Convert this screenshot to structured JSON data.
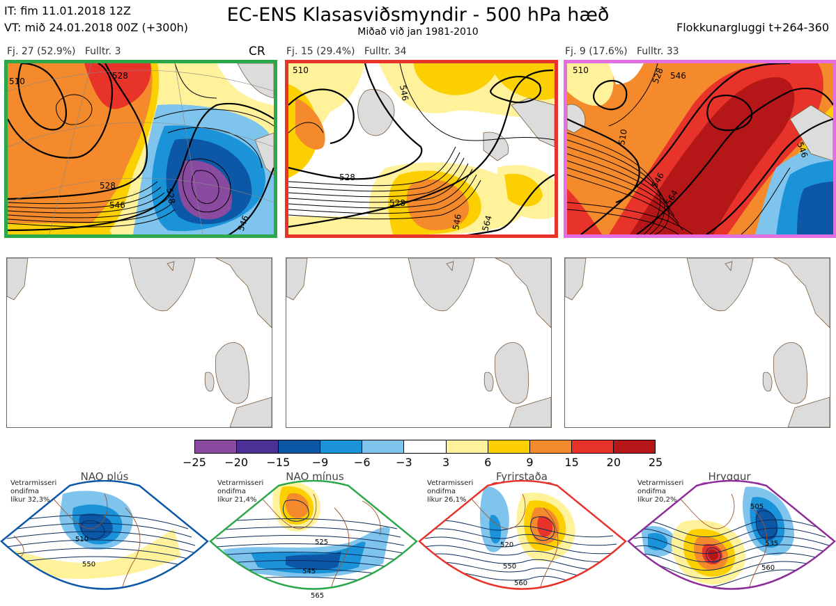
{
  "header": {
    "it_line": "IT: fim 11.01.2018 12Z",
    "vt_line": "VT: mið 24.01.2018 00Z  (+300h)",
    "title": "EC-ENS Klasasviðsmyndir - 500 hPa hæð",
    "subtitle": "Miðað við jan 1981-2010",
    "window": "Flokkunargluggi t+264-360"
  },
  "clusters": [
    {
      "label": "Fj. 27 (52.9%)",
      "rep": "Fulltr.  3",
      "border_color": "#2ca84a",
      "badge": "CR",
      "contour_labels": [
        "510",
        "528",
        "528",
        "546",
        "528",
        "546"
      ]
    },
    {
      "label": "Fj. 15 (29.4%)",
      "rep": "Fulltr.  34",
      "border_color": "#e8332b",
      "badge": "",
      "contour_labels": [
        "510",
        "528",
        "528",
        "546",
        "546",
        "564"
      ]
    },
    {
      "label": "Fj. 9 (17.6%)",
      "rep": "Fulltr.  33",
      "border_color": "#e36fe0",
      "badge": "",
      "contour_labels": [
        "510",
        "546",
        "510",
        "528",
        "546",
        "564",
        "546"
      ]
    }
  ],
  "colorbar": {
    "colors": [
      "#8a4aa0",
      "#4b3096",
      "#0c57a6",
      "#1a93d8",
      "#7fc4ec",
      "#ffffff",
      "#fff29a",
      "#fcd000",
      "#f48a2b",
      "#e8332b",
      "#b51618"
    ],
    "labels": [
      "−25",
      "−20",
      "−15",
      "−9",
      "−6",
      "−3",
      "3",
      "6",
      "9",
      "15",
      "20",
      "25"
    ]
  },
  "regimes": [
    {
      "name": "NAO plús",
      "text": [
        "Vetrarmisseri",
        "ondifma",
        "líkur 32,3%"
      ],
      "dot_color": "#0c57a6",
      "border_color": "#0c57a6",
      "contour_labels": [
        "510",
        "550"
      ]
    },
    {
      "name": "NAO mínus",
      "text": [
        "Vetrarmisseri",
        "ondifma",
        "líkur 21,4%"
      ],
      "dot_color": "#2ca84a",
      "border_color": "#2ca84a",
      "contour_labels": [
        "525",
        "545",
        "565"
      ]
    },
    {
      "name": "Fyrirstaða",
      "text": [
        "Vetrarmisseri",
        "ondifma",
        "líkur 26,1%"
      ],
      "dot_color": "#e8332b",
      "border_color": "#e8332b",
      "contour_labels": [
        "520",
        "550",
        "560"
      ]
    },
    {
      "name": "Hryggur",
      "text": [
        "Vetrarmisseri",
        "ondifma",
        "líkur 20,2%"
      ],
      "dot_color": "#e36fe0",
      "border_color": "#8e2c98",
      "contour_labels": [
        "505",
        "535",
        "560"
      ]
    }
  ]
}
